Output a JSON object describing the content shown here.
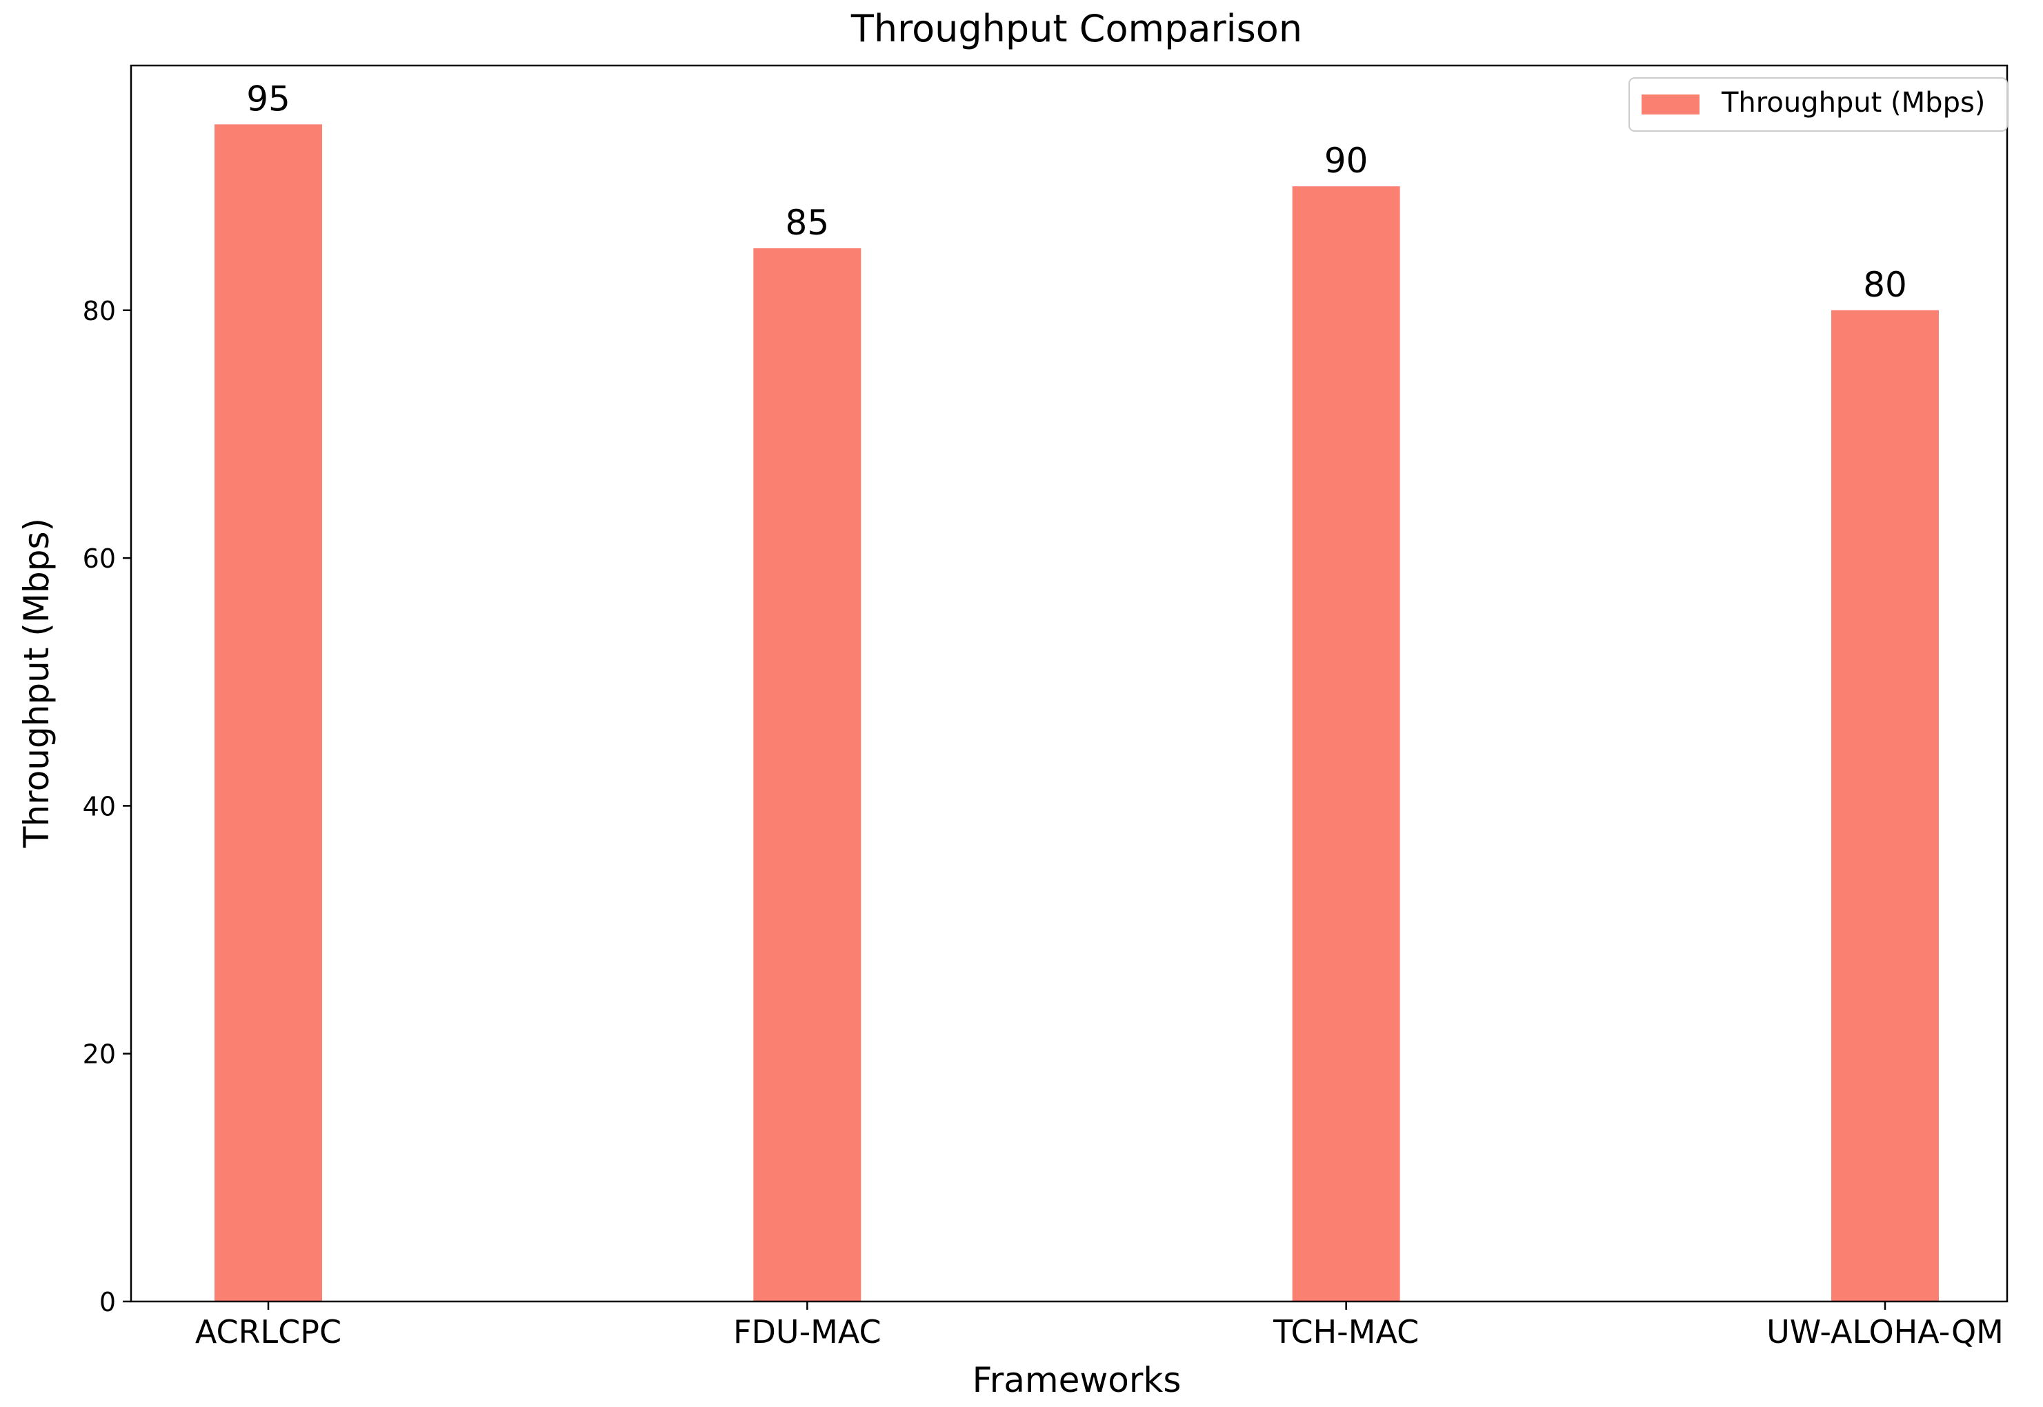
{
  "chart_data": {
    "type": "bar",
    "title": "Throughput Comparison",
    "xlabel": "Frameworks",
    "ylabel": "Throughput (Mbps)",
    "categories": [
      "ACRLCPC",
      "FDU-MAC",
      "TCH-MAC",
      "UW-ALOHA-QM"
    ],
    "series": [
      {
        "name": "Throughput (Mbps)",
        "values": [
          95,
          85,
          90,
          80
        ],
        "color": "#fa8072"
      }
    ],
    "data_labels": [
      "95",
      "85",
      "90",
      "80"
    ],
    "ylim": [
      0,
      99.75
    ],
    "yticks": [
      0,
      20,
      40,
      60,
      80
    ],
    "ytick_labels": [
      "0",
      "20",
      "40",
      "60",
      "80"
    ],
    "grid": false,
    "legend_position": "top-right"
  }
}
